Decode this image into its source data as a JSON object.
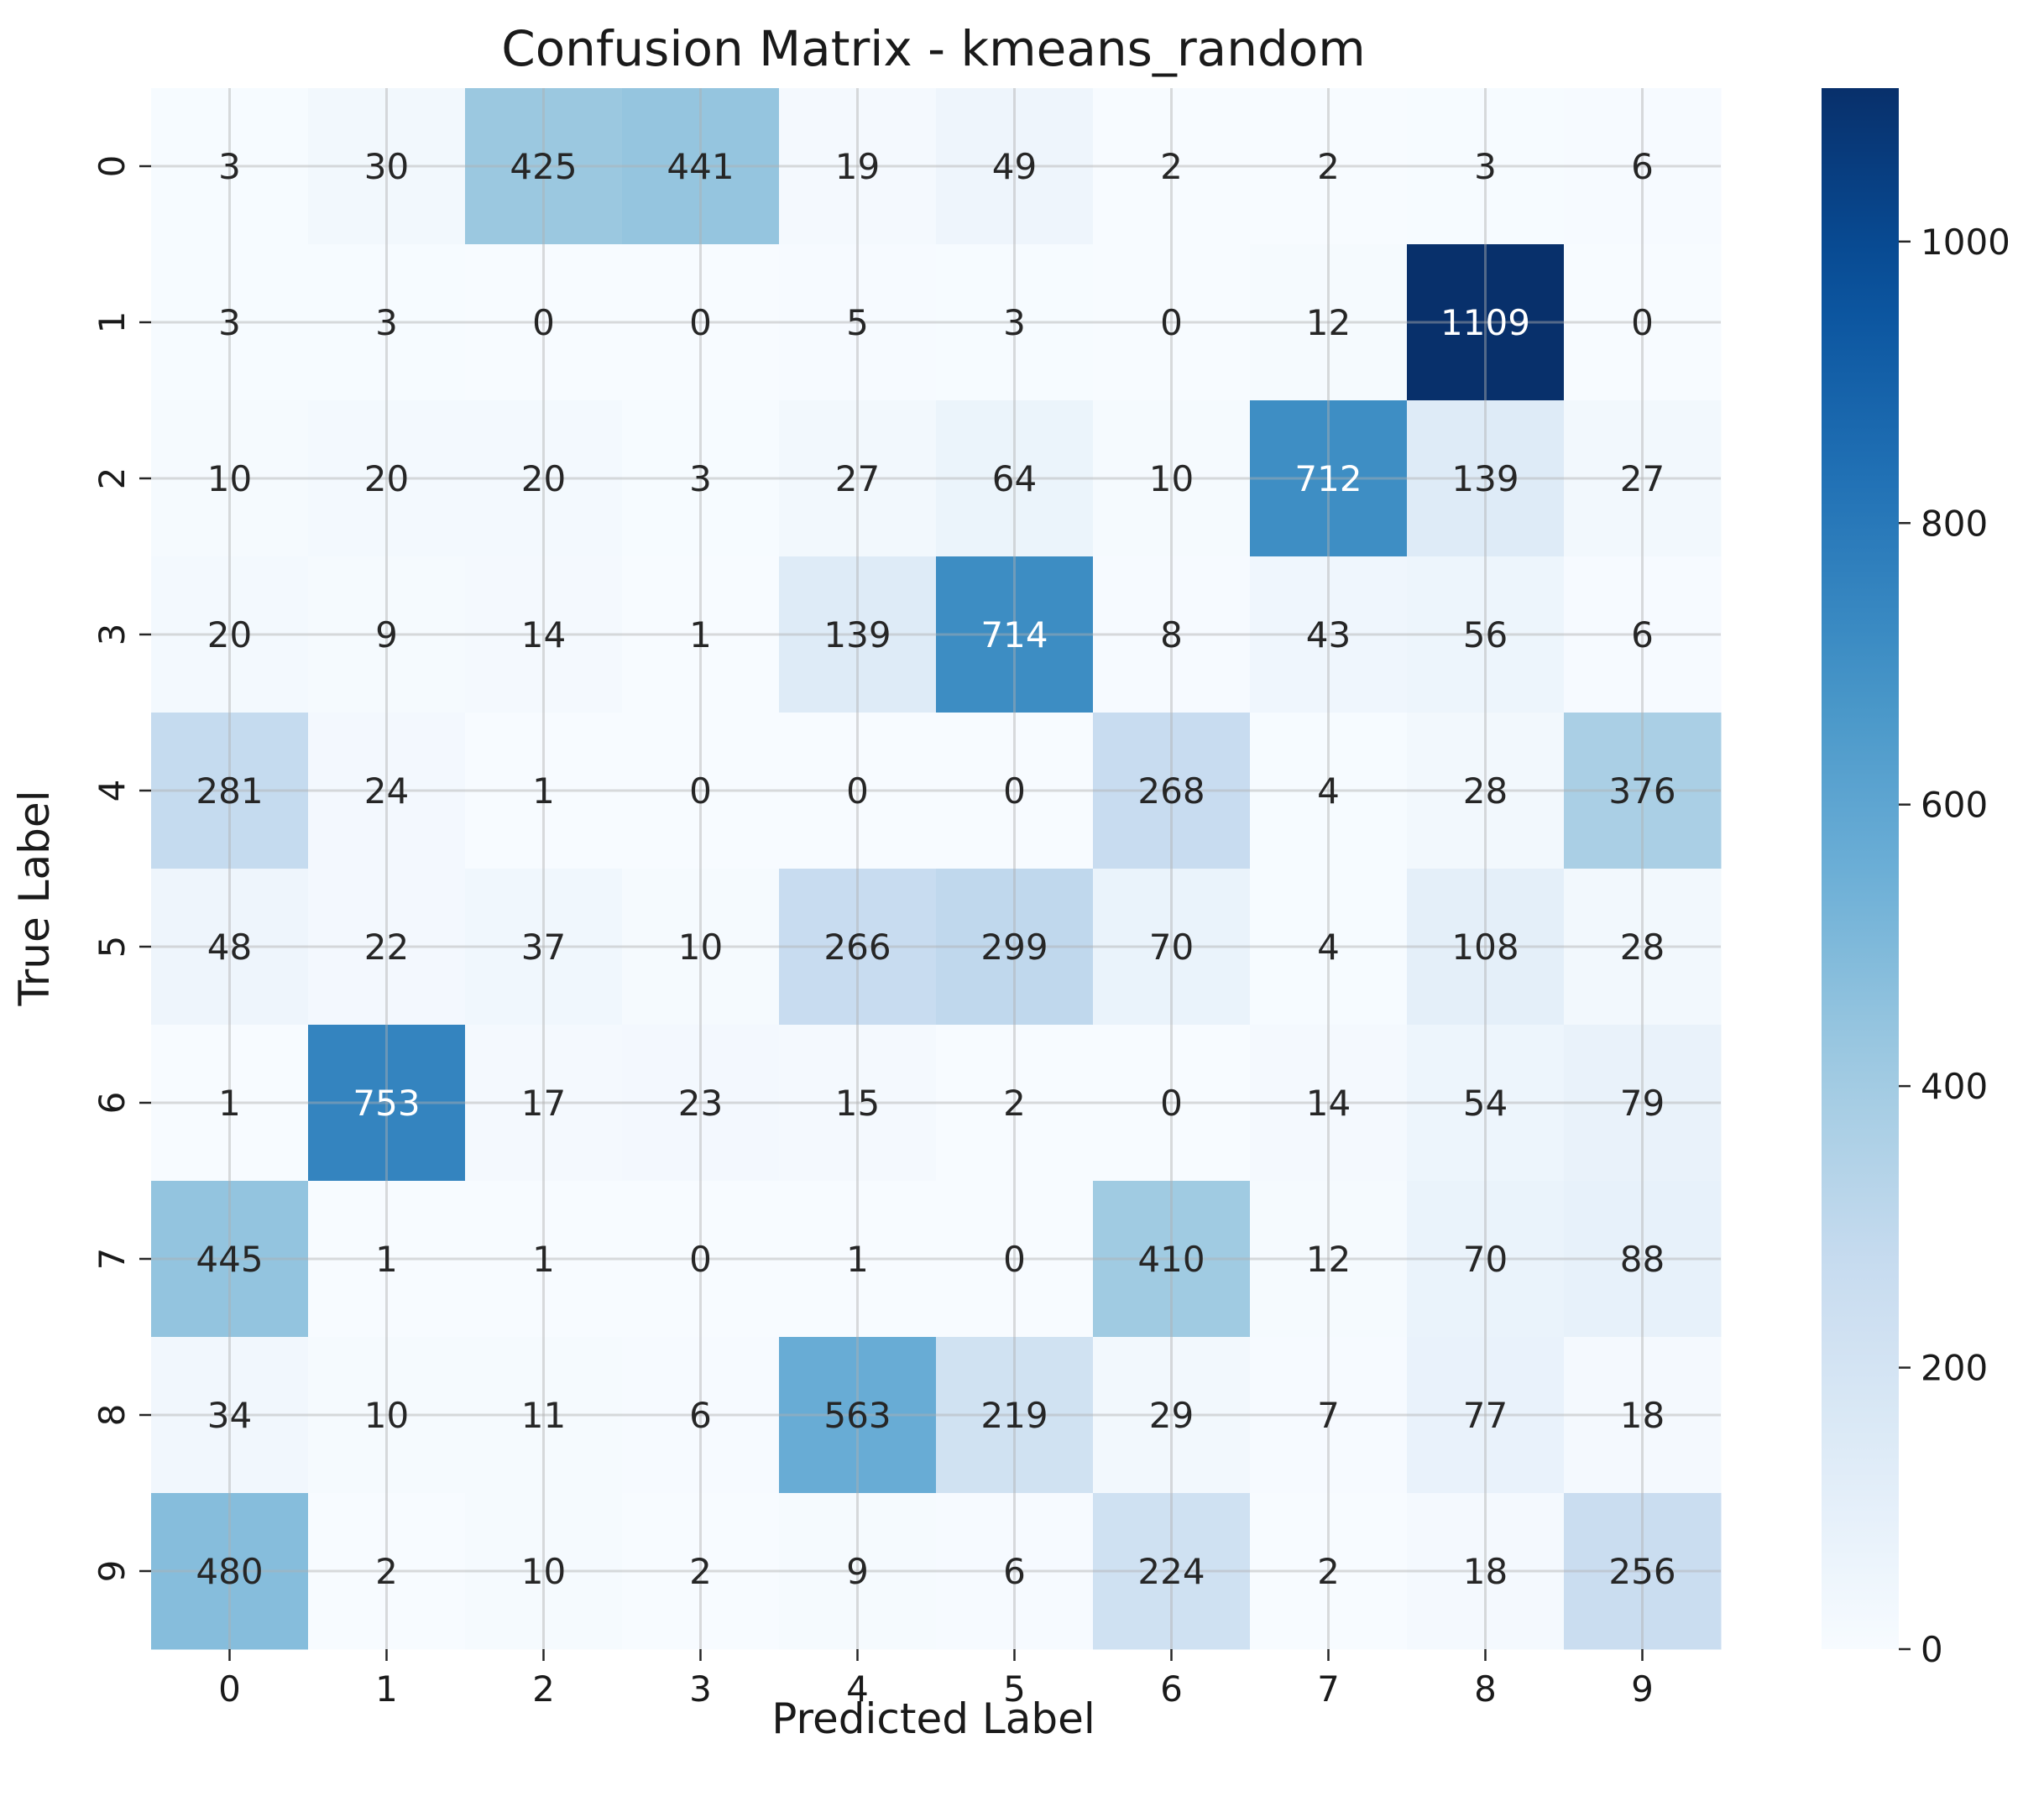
{
  "chart_data": {
    "type": "heatmap",
    "title": "Confusion Matrix - kmeans_random",
    "xlabel": "Predicted Label",
    "ylabel": "True Label",
    "x_categories": [
      "0",
      "1",
      "2",
      "3",
      "4",
      "5",
      "6",
      "7",
      "8",
      "9"
    ],
    "y_categories": [
      "0",
      "1",
      "2",
      "3",
      "4",
      "5",
      "6",
      "7",
      "8",
      "9"
    ],
    "values": [
      [
        3,
        30,
        425,
        441,
        19,
        49,
        2,
        2,
        3,
        6
      ],
      [
        3,
        3,
        0,
        0,
        5,
        3,
        0,
        12,
        1109,
        0
      ],
      [
        10,
        20,
        20,
        3,
        27,
        64,
        10,
        712,
        139,
        27
      ],
      [
        20,
        9,
        14,
        1,
        139,
        714,
        8,
        43,
        56,
        6
      ],
      [
        281,
        24,
        1,
        0,
        0,
        0,
        268,
        4,
        28,
        376
      ],
      [
        48,
        22,
        37,
        10,
        266,
        299,
        70,
        4,
        108,
        28
      ],
      [
        1,
        753,
        17,
        23,
        15,
        2,
        0,
        14,
        54,
        79
      ],
      [
        445,
        1,
        1,
        0,
        1,
        0,
        410,
        12,
        70,
        88
      ],
      [
        34,
        10,
        11,
        6,
        563,
        219,
        29,
        7,
        77,
        18
      ],
      [
        480,
        2,
        10,
        2,
        9,
        6,
        224,
        2,
        18,
        256
      ]
    ],
    "colormap": "Blues",
    "colorbar": {
      "range": [
        0,
        1109
      ],
      "ticks": [
        0,
        200,
        400,
        600,
        800,
        1000
      ]
    },
    "grid": true,
    "annotations": true
  }
}
